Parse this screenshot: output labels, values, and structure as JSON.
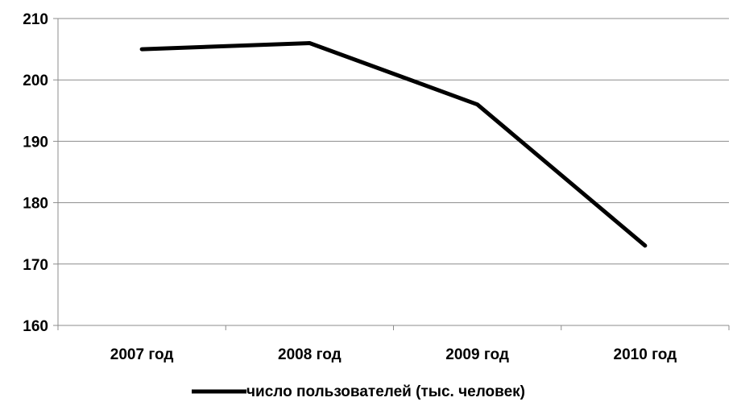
{
  "chart_data": {
    "type": "line",
    "categories": [
      "2007 год",
      "2008 год",
      "2009 год",
      "2010 год"
    ],
    "series": [
      {
        "name": "число пользователей (тыс. человек)",
        "values": [
          205,
          206,
          196,
          173
        ],
        "color": "#000000"
      }
    ],
    "yticks": [
      160,
      170,
      180,
      190,
      200,
      210
    ],
    "ylim": [
      160,
      210
    ],
    "grid": true,
    "legend_position": "bottom"
  }
}
